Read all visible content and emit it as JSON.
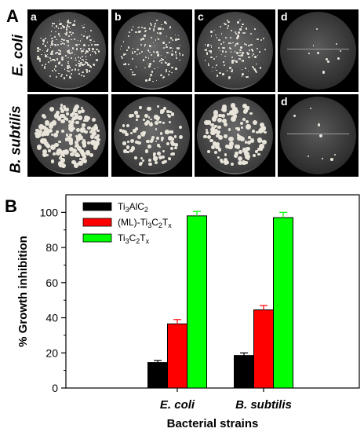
{
  "panel_a": {
    "letter": "A",
    "rows": [
      {
        "label": "E. coli",
        "tiles": [
          "a",
          "b",
          "c",
          "d"
        ]
      },
      {
        "label": "B. subtilis",
        "tiles": [
          "",
          "",
          "",
          "d"
        ]
      }
    ]
  },
  "panel_b": {
    "letter": "B"
  },
  "chart_data": {
    "type": "bar",
    "categories": [
      "E. coli",
      "B. subtilis"
    ],
    "series": [
      {
        "name": "Ti3AlC2",
        "name_main": "Ti",
        "name_sub1": "3",
        "name_mid": "AlC",
        "name_sub2": "2",
        "color": "#000000",
        "values": [
          14.5,
          18.5
        ],
        "errors": [
          1.2,
          1.5
        ]
      },
      {
        "name": "(ML)-Ti3C2Tx",
        "name_main": "(ML)-Ti",
        "name_sub1": "3",
        "name_mid": "C",
        "name_sub2": "2",
        "name_tail": "T",
        "name_sub3": "x",
        "color": "#ff0000",
        "values": [
          36.5,
          44.5
        ],
        "errors": [
          2.5,
          2.5
        ]
      },
      {
        "name": "Ti3C2Tx",
        "name_main": "Ti",
        "name_sub1": "3",
        "name_mid": "C",
        "name_sub2": "2",
        "name_tail": "T",
        "name_sub3": "x",
        "color": "#00ff00",
        "values": [
          98.0,
          97.0
        ],
        "errors": [
          2.5,
          3.0
        ]
      }
    ],
    "ylabel": "% Growth inhibition",
    "xlabel": "Bacterial strains",
    "ylim": [
      0,
      110
    ],
    "yticks": [
      0,
      20,
      40,
      60,
      80,
      100
    ],
    "grid": false,
    "legend_position": "top-left"
  }
}
